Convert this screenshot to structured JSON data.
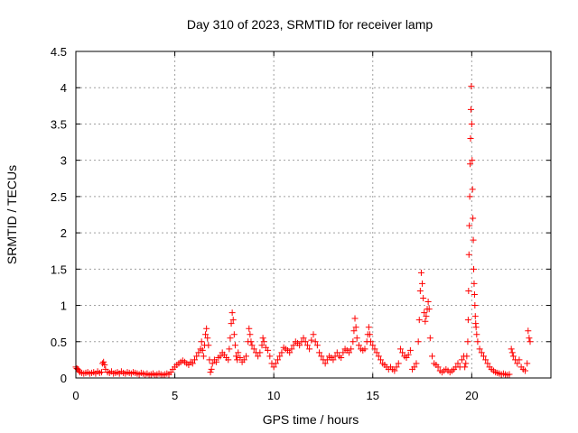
{
  "chart_data": {
    "type": "scatter",
    "title": "Day 310 of 2023, SRMTID for receiver lamp",
    "xlabel": "GPS time / hours",
    "ylabel": "SRMTID / TECUs",
    "xlim": [
      0,
      24
    ],
    "ylim": [
      0,
      4.5
    ],
    "xticks": [
      0,
      5,
      10,
      15,
      20
    ],
    "xtick_labels": [
      "0",
      "5",
      "10",
      "15",
      "20"
    ],
    "yticks": [
      0,
      0.5,
      1,
      1.5,
      2,
      2.5,
      3,
      3.5,
      4,
      4.5
    ],
    "ytick_labels": [
      "0",
      "0.5",
      "1",
      "1.5",
      "2",
      "2.5",
      "3",
      "3.5",
      "4",
      "4.5"
    ],
    "grid": true,
    "marker": "plus",
    "color": "#ff0000",
    "series": [
      {
        "name": "lamp",
        "points": [
          [
            0.0,
            0.15
          ],
          [
            0.05,
            0.13
          ],
          [
            0.1,
            0.12
          ],
          [
            0.15,
            0.1
          ],
          [
            0.2,
            0.08
          ],
          [
            0.3,
            0.07
          ],
          [
            0.4,
            0.06
          ],
          [
            0.5,
            0.07
          ],
          [
            0.6,
            0.08
          ],
          [
            0.7,
            0.06
          ],
          [
            0.8,
            0.07
          ],
          [
            0.9,
            0.08
          ],
          [
            1.0,
            0.06
          ],
          [
            1.1,
            0.09
          ],
          [
            1.2,
            0.07
          ],
          [
            1.3,
            0.08
          ],
          [
            1.35,
            0.2
          ],
          [
            1.4,
            0.22
          ],
          [
            1.45,
            0.18
          ],
          [
            1.5,
            0.12
          ],
          [
            1.6,
            0.08
          ],
          [
            1.7,
            0.07
          ],
          [
            1.8,
            0.09
          ],
          [
            1.9,
            0.06
          ],
          [
            2.0,
            0.07
          ],
          [
            2.1,
            0.08
          ],
          [
            2.2,
            0.06
          ],
          [
            2.3,
            0.09
          ],
          [
            2.4,
            0.07
          ],
          [
            2.5,
            0.06
          ],
          [
            2.6,
            0.08
          ],
          [
            2.7,
            0.07
          ],
          [
            2.8,
            0.06
          ],
          [
            2.9,
            0.08
          ],
          [
            3.0,
            0.07
          ],
          [
            3.1,
            0.06
          ],
          [
            3.2,
            0.05
          ],
          [
            3.3,
            0.07
          ],
          [
            3.4,
            0.06
          ],
          [
            3.5,
            0.05
          ],
          [
            3.6,
            0.06
          ],
          [
            3.7,
            0.04
          ],
          [
            3.8,
            0.05
          ],
          [
            3.9,
            0.06
          ],
          [
            4.0,
            0.04
          ],
          [
            4.1,
            0.05
          ],
          [
            4.2,
            0.06
          ],
          [
            4.3,
            0.05
          ],
          [
            4.4,
            0.04
          ],
          [
            4.5,
            0.05
          ],
          [
            4.6,
            0.06
          ],
          [
            4.7,
            0.05
          ],
          [
            4.8,
            0.08
          ],
          [
            4.9,
            0.12
          ],
          [
            5.0,
            0.15
          ],
          [
            5.1,
            0.18
          ],
          [
            5.2,
            0.2
          ],
          [
            5.3,
            0.22
          ],
          [
            5.4,
            0.24
          ],
          [
            5.5,
            0.22
          ],
          [
            5.6,
            0.2
          ],
          [
            5.7,
            0.18
          ],
          [
            5.8,
            0.22
          ],
          [
            5.9,
            0.2
          ],
          [
            6.0,
            0.25
          ],
          [
            6.1,
            0.3
          ],
          [
            6.2,
            0.35
          ],
          [
            6.3,
            0.4
          ],
          [
            6.35,
            0.5
          ],
          [
            6.4,
            0.38
          ],
          [
            6.45,
            0.3
          ],
          [
            6.5,
            0.45
          ],
          [
            6.55,
            0.6
          ],
          [
            6.6,
            0.68
          ],
          [
            6.65,
            0.55
          ],
          [
            6.7,
            0.45
          ],
          [
            6.75,
            0.25
          ],
          [
            6.8,
            0.08
          ],
          [
            6.85,
            0.12
          ],
          [
            6.9,
            0.2
          ],
          [
            7.0,
            0.25
          ],
          [
            7.1,
            0.22
          ],
          [
            7.2,
            0.28
          ],
          [
            7.3,
            0.3
          ],
          [
            7.4,
            0.35
          ],
          [
            7.5,
            0.32
          ],
          [
            7.6,
            0.28
          ],
          [
            7.7,
            0.25
          ],
          [
            7.75,
            0.4
          ],
          [
            7.8,
            0.55
          ],
          [
            7.85,
            0.75
          ],
          [
            7.9,
            0.9
          ],
          [
            7.95,
            0.8
          ],
          [
            8.0,
            0.6
          ],
          [
            8.05,
            0.45
          ],
          [
            8.1,
            0.3
          ],
          [
            8.15,
            0.25
          ],
          [
            8.2,
            0.35
          ],
          [
            8.3,
            0.28
          ],
          [
            8.4,
            0.22
          ],
          [
            8.5,
            0.25
          ],
          [
            8.6,
            0.3
          ],
          [
            8.7,
            0.5
          ],
          [
            8.75,
            0.68
          ],
          [
            8.8,
            0.6
          ],
          [
            8.85,
            0.5
          ],
          [
            8.9,
            0.45
          ],
          [
            9.0,
            0.4
          ],
          [
            9.1,
            0.35
          ],
          [
            9.2,
            0.3
          ],
          [
            9.3,
            0.35
          ],
          [
            9.4,
            0.45
          ],
          [
            9.45,
            0.55
          ],
          [
            9.5,
            0.5
          ],
          [
            9.6,
            0.42
          ],
          [
            9.7,
            0.38
          ],
          [
            9.8,
            0.3
          ],
          [
            9.9,
            0.2
          ],
          [
            10.0,
            0.15
          ],
          [
            10.1,
            0.2
          ],
          [
            10.2,
            0.25
          ],
          [
            10.3,
            0.3
          ],
          [
            10.4,
            0.35
          ],
          [
            10.5,
            0.42
          ],
          [
            10.6,
            0.4
          ],
          [
            10.7,
            0.38
          ],
          [
            10.8,
            0.35
          ],
          [
            10.9,
            0.4
          ],
          [
            11.0,
            0.45
          ],
          [
            11.1,
            0.5
          ],
          [
            11.2,
            0.48
          ],
          [
            11.3,
            0.45
          ],
          [
            11.4,
            0.5
          ],
          [
            11.5,
            0.55
          ],
          [
            11.6,
            0.5
          ],
          [
            11.7,
            0.45
          ],
          [
            11.8,
            0.4
          ],
          [
            11.9,
            0.52
          ],
          [
            12.0,
            0.6
          ],
          [
            12.1,
            0.5
          ],
          [
            12.2,
            0.45
          ],
          [
            12.3,
            0.35
          ],
          [
            12.4,
            0.3
          ],
          [
            12.5,
            0.25
          ],
          [
            12.6,
            0.2
          ],
          [
            12.7,
            0.25
          ],
          [
            12.8,
            0.3
          ],
          [
            12.9,
            0.28
          ],
          [
            13.0,
            0.25
          ],
          [
            13.1,
            0.3
          ],
          [
            13.2,
            0.35
          ],
          [
            13.3,
            0.3
          ],
          [
            13.4,
            0.28
          ],
          [
            13.5,
            0.35
          ],
          [
            13.6,
            0.4
          ],
          [
            13.7,
            0.38
          ],
          [
            13.8,
            0.35
          ],
          [
            13.9,
            0.4
          ],
          [
            14.0,
            0.5
          ],
          [
            14.05,
            0.65
          ],
          [
            14.1,
            0.82
          ],
          [
            14.15,
            0.7
          ],
          [
            14.2,
            0.55
          ],
          [
            14.3,
            0.45
          ],
          [
            14.4,
            0.4
          ],
          [
            14.5,
            0.38
          ],
          [
            14.6,
            0.4
          ],
          [
            14.7,
            0.5
          ],
          [
            14.75,
            0.6
          ],
          [
            14.8,
            0.7
          ],
          [
            14.85,
            0.6
          ],
          [
            14.9,
            0.5
          ],
          [
            15.0,
            0.45
          ],
          [
            15.1,
            0.4
          ],
          [
            15.2,
            0.35
          ],
          [
            15.3,
            0.3
          ],
          [
            15.4,
            0.25
          ],
          [
            15.5,
            0.2
          ],
          [
            15.6,
            0.18
          ],
          [
            15.7,
            0.15
          ],
          [
            15.8,
            0.12
          ],
          [
            15.9,
            0.15
          ],
          [
            16.0,
            0.12
          ],
          [
            16.1,
            0.1
          ],
          [
            16.2,
            0.15
          ],
          [
            16.3,
            0.2
          ],
          [
            16.4,
            0.4
          ],
          [
            16.5,
            0.35
          ],
          [
            16.6,
            0.3
          ],
          [
            16.7,
            0.28
          ],
          [
            16.8,
            0.32
          ],
          [
            16.9,
            0.38
          ],
          [
            17.0,
            0.12
          ],
          [
            17.1,
            0.15
          ],
          [
            17.2,
            0.2
          ],
          [
            17.3,
            0.5
          ],
          [
            17.35,
            0.8
          ],
          [
            17.4,
            1.2
          ],
          [
            17.45,
            1.45
          ],
          [
            17.5,
            1.3
          ],
          [
            17.55,
            1.1
          ],
          [
            17.6,
            0.9
          ],
          [
            17.65,
            0.78
          ],
          [
            17.7,
            0.85
          ],
          [
            17.75,
            0.95
          ],
          [
            17.8,
            1.05
          ],
          [
            17.85,
            0.95
          ],
          [
            17.9,
            0.55
          ],
          [
            18.0,
            0.3
          ],
          [
            18.1,
            0.2
          ],
          [
            18.2,
            0.18
          ],
          [
            18.3,
            0.15
          ],
          [
            18.4,
            0.1
          ],
          [
            18.5,
            0.08
          ],
          [
            18.6,
            0.1
          ],
          [
            18.7,
            0.12
          ],
          [
            18.8,
            0.1
          ],
          [
            18.9,
            0.08
          ],
          [
            19.0,
            0.1
          ],
          [
            19.1,
            0.12
          ],
          [
            19.2,
            0.15
          ],
          [
            19.3,
            0.2
          ],
          [
            19.4,
            0.15
          ],
          [
            19.5,
            0.25
          ],
          [
            19.6,
            0.3
          ],
          [
            19.65,
            0.15
          ],
          [
            19.7,
            0.2
          ],
          [
            19.75,
            0.3
          ],
          [
            19.8,
            0.5
          ],
          [
            19.82,
            0.8
          ],
          [
            19.84,
            1.2
          ],
          [
            19.86,
            1.7
          ],
          [
            19.88,
            2.1
          ],
          [
            19.9,
            2.5
          ],
          [
            19.92,
            2.95
          ],
          [
            19.94,
            3.3
          ],
          [
            19.96,
            3.7
          ],
          [
            19.98,
            4.02
          ],
          [
            20.0,
            3.5
          ],
          [
            20.02,
            3.0
          ],
          [
            20.04,
            2.6
          ],
          [
            20.06,
            2.2
          ],
          [
            20.08,
            1.9
          ],
          [
            20.1,
            1.5
          ],
          [
            20.12,
            1.3
          ],
          [
            20.14,
            1.15
          ],
          [
            20.16,
            1.0
          ],
          [
            20.18,
            0.85
          ],
          [
            20.2,
            0.75
          ],
          [
            20.22,
            0.7
          ],
          [
            20.25,
            0.6
          ],
          [
            20.3,
            0.5
          ],
          [
            20.4,
            0.4
          ],
          [
            20.5,
            0.35
          ],
          [
            20.6,
            0.3
          ],
          [
            20.7,
            0.25
          ],
          [
            20.8,
            0.2
          ],
          [
            20.9,
            0.15
          ],
          [
            21.0,
            0.12
          ],
          [
            21.1,
            0.1
          ],
          [
            21.2,
            0.08
          ],
          [
            21.3,
            0.07
          ],
          [
            21.4,
            0.06
          ],
          [
            21.5,
            0.05
          ],
          [
            21.6,
            0.06
          ],
          [
            21.7,
            0.05
          ],
          [
            21.8,
            0.04
          ],
          [
            21.9,
            0.05
          ],
          [
            22.0,
            0.4
          ],
          [
            22.05,
            0.35
          ],
          [
            22.1,
            0.3
          ],
          [
            22.2,
            0.25
          ],
          [
            22.3,
            0.2
          ],
          [
            22.4,
            0.25
          ],
          [
            22.5,
            0.15
          ],
          [
            22.6,
            0.12
          ],
          [
            22.7,
            0.1
          ],
          [
            22.8,
            0.2
          ],
          [
            22.85,
            0.65
          ],
          [
            22.9,
            0.55
          ],
          [
            22.95,
            0.5
          ]
        ]
      }
    ]
  }
}
